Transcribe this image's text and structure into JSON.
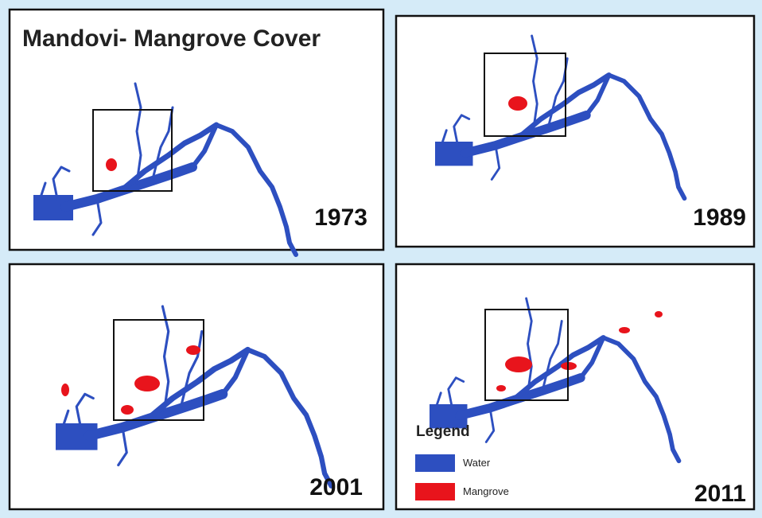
{
  "title": "Mandovi- Mangrove Cover",
  "panels": [
    {
      "year": "1973"
    },
    {
      "year": "1989"
    },
    {
      "year": "2001"
    },
    {
      "year": "2011"
    }
  ],
  "legend": {
    "title": "Legend",
    "items": [
      "Water",
      "Mangrove"
    ]
  }
}
